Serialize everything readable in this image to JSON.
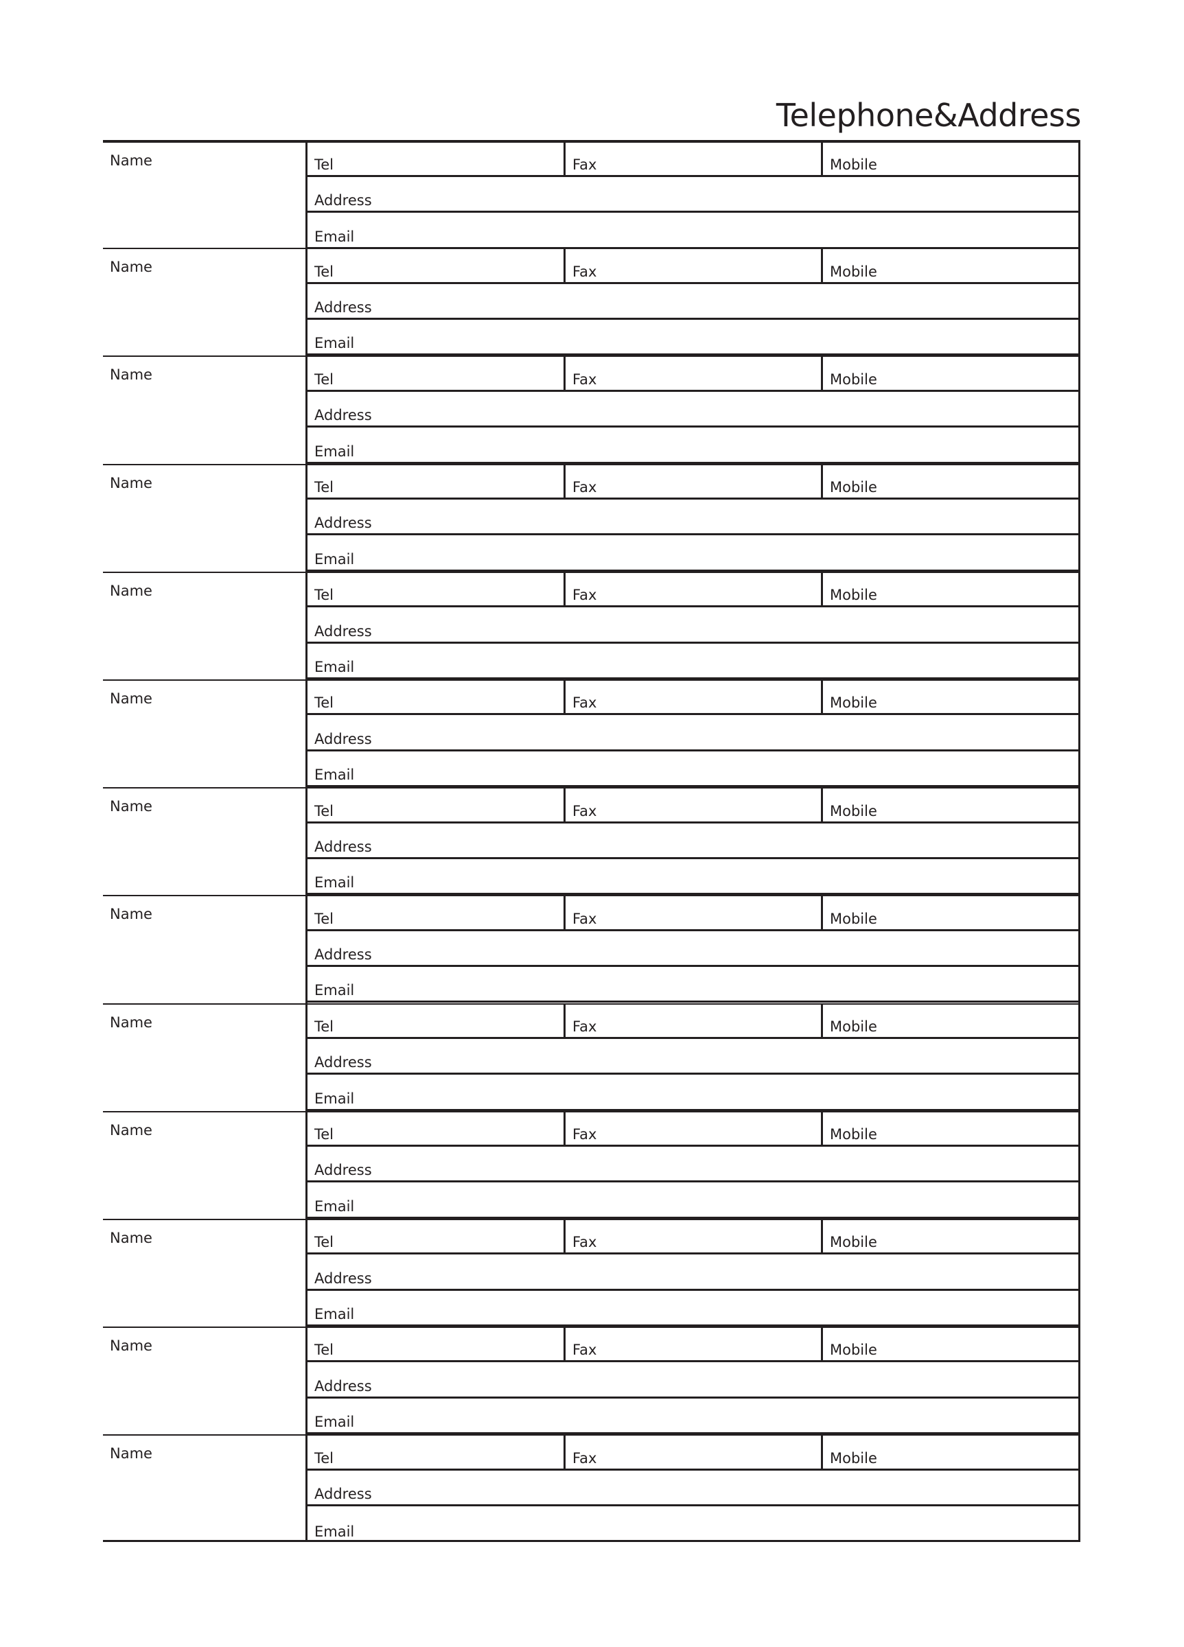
{
  "title": "Telephone&Address",
  "labels": {
    "name": "Name",
    "tel": "Tel",
    "fax": "Fax",
    "mobile": "Mobile",
    "address": "Address",
    "email": "Email"
  },
  "entries": [
    {
      "name": "",
      "tel": "",
      "fax": "",
      "mobile": "",
      "address": "",
      "email": ""
    },
    {
      "name": "",
      "tel": "",
      "fax": "",
      "mobile": "",
      "address": "",
      "email": ""
    },
    {
      "name": "",
      "tel": "",
      "fax": "",
      "mobile": "",
      "address": "",
      "email": ""
    },
    {
      "name": "",
      "tel": "",
      "fax": "",
      "mobile": "",
      "address": "",
      "email": ""
    },
    {
      "name": "",
      "tel": "",
      "fax": "",
      "mobile": "",
      "address": "",
      "email": ""
    },
    {
      "name": "",
      "tel": "",
      "fax": "",
      "mobile": "",
      "address": "",
      "email": ""
    },
    {
      "name": "",
      "tel": "",
      "fax": "",
      "mobile": "",
      "address": "",
      "email": ""
    },
    {
      "name": "",
      "tel": "",
      "fax": "",
      "mobile": "",
      "address": "",
      "email": ""
    },
    {
      "name": "",
      "tel": "",
      "fax": "",
      "mobile": "",
      "address": "",
      "email": ""
    },
    {
      "name": "",
      "tel": "",
      "fax": "",
      "mobile": "",
      "address": "",
      "email": ""
    },
    {
      "name": "",
      "tel": "",
      "fax": "",
      "mobile": "",
      "address": "",
      "email": ""
    },
    {
      "name": "",
      "tel": "",
      "fax": "",
      "mobile": "",
      "address": "",
      "email": ""
    },
    {
      "name": "",
      "tel": "",
      "fax": "",
      "mobile": "",
      "address": "",
      "email": ""
    }
  ]
}
